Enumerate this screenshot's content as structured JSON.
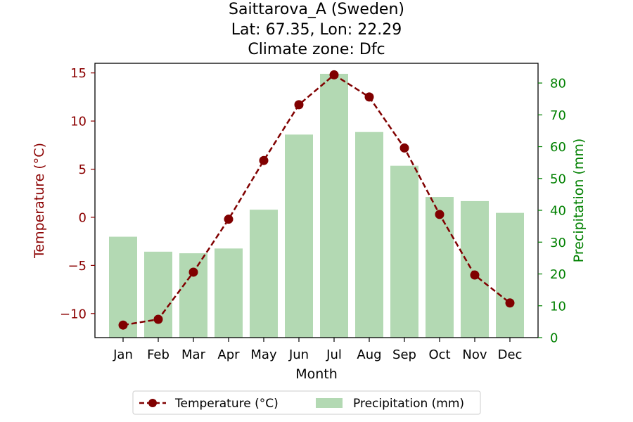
{
  "chart_data": {
    "type": "bar+line",
    "title_lines": [
      "Saittarova_A (Sweden)",
      "Lat: 67.35, Lon: 22.29",
      "Climate zone: Dfc"
    ],
    "xlabel": "Month",
    "ylabel_left": "Temperature (°C)",
    "ylabel_right": "Precipitation (mm)",
    "categories": [
      "Jan",
      "Feb",
      "Mar",
      "Apr",
      "May",
      "Jun",
      "Jul",
      "Aug",
      "Sep",
      "Oct",
      "Nov",
      "Dec"
    ],
    "temperature": {
      "name": "Temperature (°C)",
      "values": [
        -11.2,
        -10.6,
        -5.7,
        -0.2,
        5.9,
        11.7,
        14.8,
        12.5,
        7.2,
        0.3,
        -6.0,
        -8.9
      ],
      "color": "#800000",
      "style": "dashed line with circle markers"
    },
    "precipitation": {
      "name": "Precipitation (mm)",
      "values": [
        31.7,
        27.0,
        26.5,
        28.0,
        40.2,
        63.8,
        82.9,
        64.6,
        54.0,
        44.2,
        42.9,
        39.2
      ],
      "color": "#b3d9b3"
    },
    "ylim_left": [
      -12.5,
      16.0
    ],
    "ylim_right": [
      0,
      86.2
    ],
    "yticks_left": [
      -10,
      -5,
      0,
      5,
      10,
      15
    ],
    "yticks_right": [
      0,
      10,
      20,
      30,
      40,
      50,
      60,
      70,
      80
    ],
    "ytick_labels_left": [
      "−10",
      "−5",
      "0",
      "5",
      "10",
      "15"
    ],
    "ytick_labels_right": [
      "0",
      "10",
      "20",
      "30",
      "40",
      "50",
      "60",
      "70",
      "80"
    ],
    "left_axis_color": "#8b0000",
    "right_axis_color": "#008000",
    "grid": false,
    "legend_position": "bottom-center"
  }
}
